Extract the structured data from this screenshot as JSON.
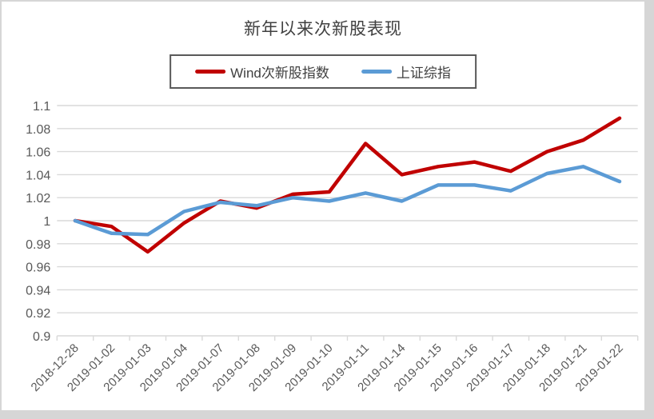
{
  "chart_data": {
    "type": "line",
    "title": "新年以来次新股表现",
    "categories": [
      "2018-12-28",
      "2019-01-02",
      "2019-01-03",
      "2019-01-04",
      "2019-01-07",
      "2019-01-08",
      "2019-01-09",
      "2019-01-10",
      "2019-01-11",
      "2019-01-14",
      "2019-01-15",
      "2019-01-16",
      "2019-01-17",
      "2019-01-18",
      "2019-01-21",
      "2019-01-22"
    ],
    "series": [
      {
        "name": "Wind次新股指数",
        "color": "#c00000",
        "values": [
          1.0,
          0.995,
          0.973,
          0.998,
          1.017,
          1.011,
          1.023,
          1.025,
          1.067,
          1.04,
          1.047,
          1.051,
          1.043,
          1.06,
          1.07,
          1.089
        ]
      },
      {
        "name": "上证综指",
        "color": "#5b9bd5",
        "values": [
          1.0,
          0.989,
          0.988,
          1.008,
          1.016,
          1.013,
          1.02,
          1.017,
          1.024,
          1.017,
          1.031,
          1.031,
          1.026,
          1.041,
          1.047,
          1.034
        ]
      }
    ],
    "ylim": [
      0.9,
      1.1
    ],
    "ytick_step": 0.02,
    "yticks": [
      {
        "value": 0.9,
        "label": "0.9"
      },
      {
        "value": 0.92,
        "label": "0.92"
      },
      {
        "value": 0.94,
        "label": "0.94"
      },
      {
        "value": 0.96,
        "label": "0.96"
      },
      {
        "value": 0.98,
        "label": "0.98"
      },
      {
        "value": 1.0,
        "label": "1"
      },
      {
        "value": 1.02,
        "label": "1.02"
      },
      {
        "value": 1.04,
        "label": "1.04"
      },
      {
        "value": 1.06,
        "label": "1.06"
      },
      {
        "value": 1.08,
        "label": "1.08"
      },
      {
        "value": 1.1,
        "label": "1.1"
      }
    ],
    "xlabel": "",
    "ylabel": "",
    "grid": true,
    "legend_position": "top",
    "x_labels_rotation_deg": -45
  },
  "styles": {
    "grid_color": "#d9d9d9",
    "axis_line_color": "#d9d9d9",
    "tick_color": "#d9d9d9",
    "axis_label_color": "#595959",
    "title_color": "#404040",
    "legend_text_color": "#404040",
    "legend_border_color": "#595959",
    "frame_color": "#d6d6d6",
    "background": "#ffffff"
  }
}
